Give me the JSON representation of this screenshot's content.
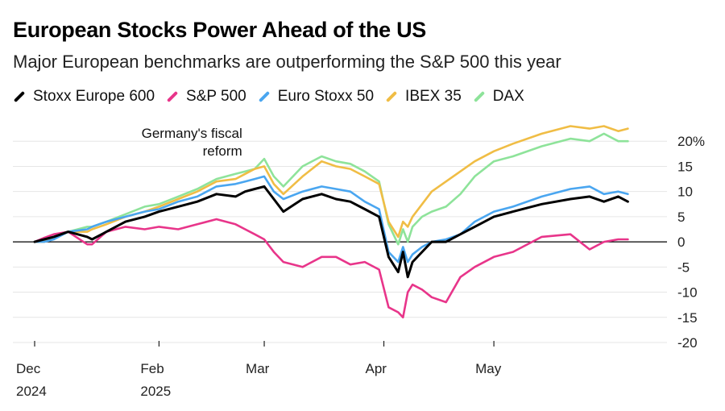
{
  "chart_data": {
    "type": "line",
    "title": "European Stocks Power Ahead of the US",
    "subtitle": "Major European benchmarks are outperforming the S&P 500 this year",
    "ylim": [
      -20,
      25
    ],
    "xlim": [
      0,
      6.5
    ],
    "y_ticks": [
      {
        "value": 20,
        "label": "20%"
      },
      {
        "value": 15,
        "label": "15"
      },
      {
        "value": 10,
        "label": "10"
      },
      {
        "value": 5,
        "label": "5"
      },
      {
        "value": 0,
        "label": "0"
      },
      {
        "value": -5,
        "label": "-5"
      },
      {
        "value": -10,
        "label": "-10"
      },
      {
        "value": -15,
        "label": "-15"
      },
      {
        "value": -20,
        "label": "-20"
      }
    ],
    "x_ticks": [
      {
        "x": 0,
        "line1": "Dec",
        "line2": "2024"
      },
      {
        "x": 1.3,
        "line1": "Feb",
        "line2": "2025"
      },
      {
        "x": 2.4,
        "line1": "Mar",
        "line2": ""
      },
      {
        "x": 3.65,
        "line1": "Apr",
        "line2": ""
      },
      {
        "x": 4.8,
        "line1": "May",
        "line2": ""
      }
    ],
    "annotation": {
      "line1": "Germany's fiscal",
      "line2": "reform",
      "x": 2.17,
      "y": 16.5
    },
    "x": [
      0,
      0.1,
      0.2,
      0.35,
      0.55,
      0.6,
      0.75,
      0.95,
      1.15,
      1.3,
      1.5,
      1.7,
      1.9,
      2.1,
      2.2,
      2.3,
      2.4,
      2.5,
      2.6,
      2.8,
      3.0,
      3.15,
      3.3,
      3.45,
      3.6,
      3.7,
      3.8,
      3.85,
      3.9,
      3.95,
      4.05,
      4.15,
      4.3,
      4.45,
      4.6,
      4.8,
      5.0,
      5.3,
      5.6,
      5.8,
      5.95,
      6.1,
      6.2
    ],
    "series": [
      {
        "name": "Stoxx Europe 600",
        "color": "#000000",
        "values": [
          0,
          0.5,
          1,
          2,
          1,
          0.5,
          2,
          4,
          5,
          6,
          7,
          8,
          9.5,
          9,
          10,
          10.5,
          11,
          8.5,
          6,
          8.5,
          9.5,
          8.5,
          8,
          6.5,
          5,
          -3,
          -6,
          -2,
          -7,
          -4,
          -2,
          0,
          0,
          1.5,
          3,
          5,
          6,
          7.5,
          8.5,
          9,
          8,
          9,
          8
        ]
      },
      {
        "name": "S&P 500",
        "color": "#e8358a",
        "values": [
          0,
          0.8,
          1.5,
          2,
          -0.5,
          -0.5,
          2,
          3,
          2.5,
          3,
          2.5,
          3.5,
          4.5,
          3.5,
          2.5,
          1.5,
          0.5,
          -2,
          -4,
          -5,
          -3,
          -3,
          -4.5,
          -4,
          -5.5,
          -13,
          -14,
          -15,
          -10,
          -8.5,
          -9.5,
          -11,
          -12,
          -7,
          -5,
          -3,
          -2,
          1,
          1.5,
          -1.5,
          0,
          0.5,
          0.5
        ]
      },
      {
        "name": "Euro Stoxx 50",
        "color": "#4aa6f0",
        "values": [
          0,
          0,
          0.5,
          2,
          2.5,
          3,
          4,
          5,
          6,
          6.5,
          8,
          9,
          11,
          11.5,
          12,
          12.5,
          13,
          10,
          8.5,
          10,
          11,
          10.5,
          10,
          8,
          6.5,
          -2,
          -4,
          -1,
          -4,
          -2.5,
          -1,
          0,
          0.5,
          1.5,
          4,
          6,
          7,
          9,
          10.5,
          11,
          9.5,
          10,
          9.5
        ]
      },
      {
        "name": "IBEX 35",
        "color": "#f0bd45",
        "values": [
          0,
          0,
          1,
          2,
          2,
          2.5,
          3.5,
          5,
          6,
          7,
          8.5,
          10,
          12,
          12.5,
          13.5,
          14.5,
          15,
          11.5,
          9.5,
          13,
          16,
          15,
          14.5,
          13,
          11.5,
          4,
          1,
          4,
          3,
          5,
          7.5,
          10,
          12,
          14,
          16,
          18,
          19.5,
          21.5,
          23,
          22.5,
          23,
          22,
          22.5
        ]
      },
      {
        "name": "DAX",
        "color": "#8ee39a",
        "values": [
          0,
          0,
          1,
          2,
          3,
          3,
          4,
          5.5,
          7,
          7.5,
          9,
          10.5,
          12.5,
          13.5,
          14,
          14.5,
          16.5,
          13,
          11,
          15,
          17,
          16,
          15.5,
          14,
          12,
          3.5,
          -0.5,
          2.5,
          0,
          3,
          5,
          6,
          7,
          9.5,
          13,
          16,
          17,
          19,
          20.5,
          20,
          21.5,
          20,
          20
        ]
      }
    ]
  }
}
